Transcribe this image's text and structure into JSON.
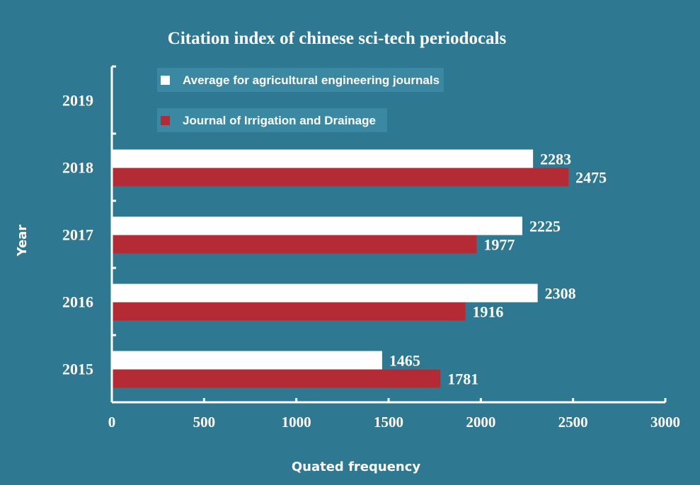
{
  "chart_data": {
    "type": "bar",
    "orientation": "horizontal",
    "title": "Citation index of chinese sci-tech periodocals",
    "xlabel": "Quated frequency",
    "ylabel": "Year",
    "categories": [
      "2015",
      "2016",
      "2017",
      "2018",
      "2019"
    ],
    "xlim": [
      0,
      3000
    ],
    "xticks": [
      0,
      500,
      1000,
      1500,
      2000,
      2500,
      3000
    ],
    "series": [
      {
        "name": "Average for agricultural engineering journals",
        "color": "#ffffff",
        "values": [
          1465,
          2308,
          2225,
          2283,
          null
        ]
      },
      {
        "name": "Journal of Irrigation and Drainage",
        "color": "#b52b35",
        "values": [
          1781,
          1916,
          1977,
          2475,
          null
        ]
      }
    ],
    "legend_position": "top-left",
    "grid": false,
    "background": "#2e7891"
  }
}
